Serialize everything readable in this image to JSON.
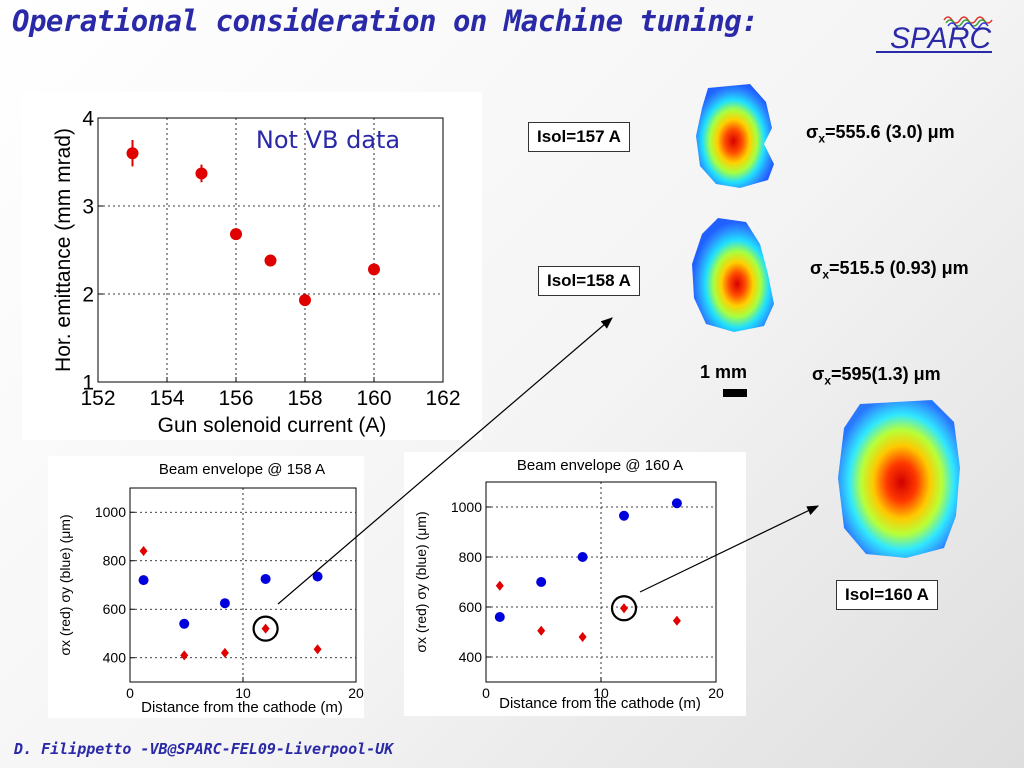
{
  "title": "Operational consideration on Machine tuning:",
  "footer": "D. Filippetto -VB@SPARC-FEL09-Liverpool-UK",
  "logo": {
    "text": "SPARC"
  },
  "colors": {
    "title": "#2a2aa8",
    "red": "#e00000",
    "blue": "#0000dd"
  },
  "solenoid_labels": {
    "i157": "Isol=157 A",
    "i158": "Isol=158 A",
    "i160": "Isol=160 A"
  },
  "sigma": {
    "s157": {
      "sym": "σ",
      "sub": "x",
      "val": "=555.6 (3.0) μm"
    },
    "s158": {
      "sym": "σ",
      "sub": "x",
      "val": "=515.5 (0.93) μm"
    },
    "s160": {
      "sym": "σ",
      "sub": "x",
      "val": "=595(1.3) μm"
    }
  },
  "scale": {
    "label": "1 mm"
  },
  "chart_data": [
    {
      "type": "scatter",
      "title": "",
      "annotation": "Not VB data",
      "xlabel": "Gun solenoid current (A)",
      "ylabel": "Hor. emittance (mm mrad)",
      "xlim": [
        152,
        162
      ],
      "ylim": [
        1,
        4
      ],
      "xticks": [
        152,
        154,
        156,
        158,
        160,
        162
      ],
      "yticks": [
        1,
        2,
        3,
        4
      ],
      "grid": true,
      "series": [
        {
          "color": "#e00000",
          "x": [
            153,
            155,
            156,
            157,
            158,
            160
          ],
          "y": [
            3.6,
            3.37,
            2.68,
            2.38,
            1.93,
            2.28
          ],
          "err": [
            0.15,
            0.1,
            0.04,
            0.04,
            0.04,
            0.05
          ]
        }
      ]
    },
    {
      "type": "scatter",
      "title": "Beam envelope @ 158 A",
      "xlabel": "Distance from the cathode (m)",
      "ylabel": "σx (red)  σy (blue) (μm)",
      "xlim": [
        0,
        20
      ],
      "ylim": [
        300,
        1100
      ],
      "xticks": [
        0,
        10,
        20
      ],
      "yticks": [
        400,
        600,
        800,
        1000
      ],
      "grid": true,
      "highlight": {
        "x": 12,
        "y": 520
      },
      "series": [
        {
          "color": "#e00000",
          "marker": "diamond",
          "x": [
            1.2,
            4.8,
            8.4,
            12,
            16.6
          ],
          "y": [
            840,
            410,
            420,
            520,
            435
          ]
        },
        {
          "color": "#0000dd",
          "marker": "circle",
          "x": [
            1.2,
            4.8,
            8.4,
            12,
            16.6
          ],
          "y": [
            720,
            540,
            625,
            725,
            735
          ]
        }
      ]
    },
    {
      "type": "scatter",
      "title": "Beam envelope @ 160 A",
      "xlabel": "Distance from the cathode (m)",
      "ylabel": "σx (red)  σy (blue) (μm)",
      "xlim": [
        0,
        20
      ],
      "ylim": [
        300,
        1100
      ],
      "xticks": [
        0,
        10,
        20
      ],
      "yticks": [
        400,
        600,
        800,
        1000
      ],
      "grid": true,
      "highlight": {
        "x": 12,
        "y": 595
      },
      "series": [
        {
          "color": "#e00000",
          "marker": "diamond",
          "x": [
            1.2,
            4.8,
            8.4,
            12,
            16.6
          ],
          "y": [
            685,
            505,
            480,
            595,
            545
          ]
        },
        {
          "color": "#0000dd",
          "marker": "circle",
          "x": [
            1.2,
            4.8,
            8.4,
            12,
            16.6
          ],
          "y": [
            560,
            700,
            800,
            965,
            1015
          ]
        }
      ]
    }
  ]
}
